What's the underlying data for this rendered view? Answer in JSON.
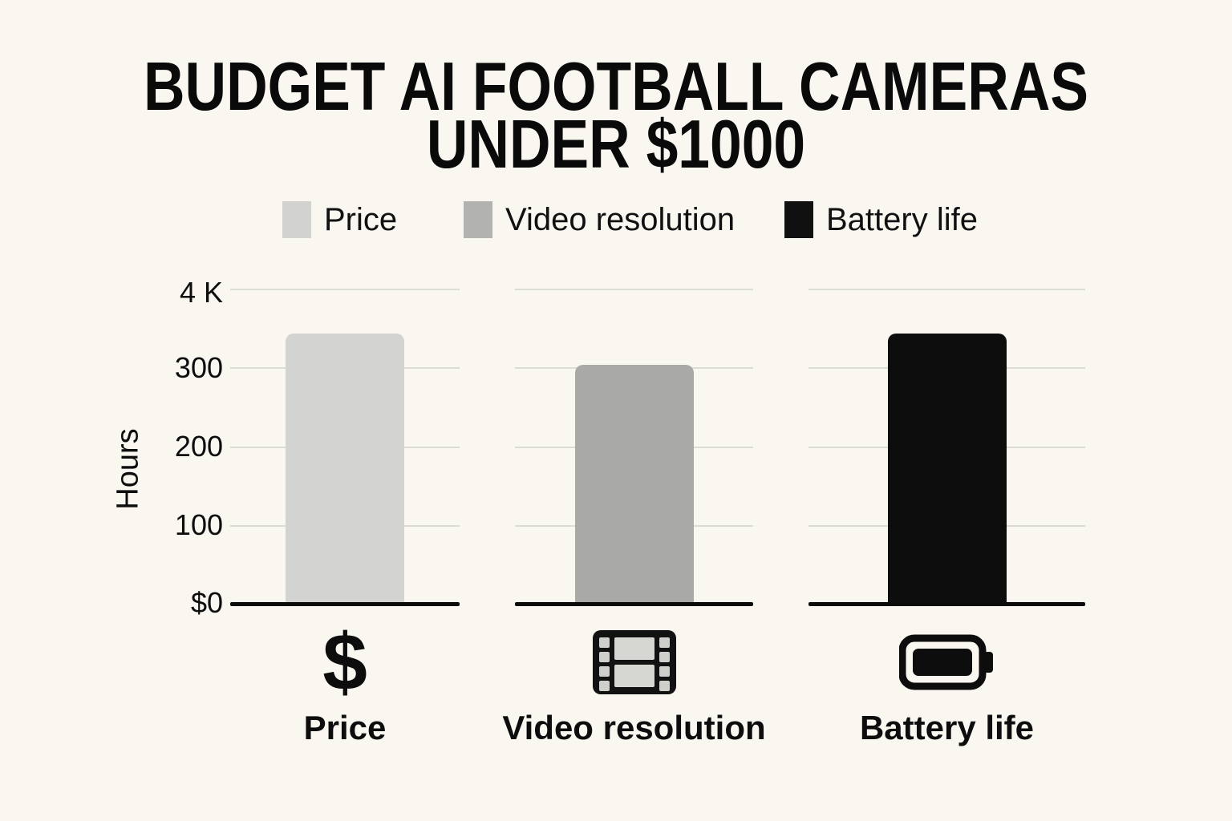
{
  "title": {
    "line1": "BUDGET AI FOOTBALL CAMERAS",
    "line2": "UNDER $1000"
  },
  "legend": {
    "items": [
      {
        "label": "Price",
        "color": "#d2d2d0"
      },
      {
        "label": "Video resolution",
        "color": "#b2b2b0"
      },
      {
        "label": "Battery life",
        "color": "#101010"
      }
    ]
  },
  "y_axis": {
    "title": "Hours",
    "ticks": {
      "top": "4 K",
      "t300": "300",
      "t200": "200",
      "t100": "100",
      "zero": "$0"
    }
  },
  "categories": [
    {
      "label": "Price",
      "icon": "dollar-icon",
      "glyph": "$"
    },
    {
      "label": "Video resolution",
      "icon": "film-icon"
    },
    {
      "label": "Battery life",
      "icon": "battery-icon"
    }
  ],
  "colors": {
    "background": "#faf7f1",
    "gridline": "#dcdcd7",
    "axis_baseline": "#0c0c0c",
    "text": "#0d0d0d"
  },
  "chart_data": {
    "type": "bar",
    "title": "BUDGET AI FOOTBALL CAMERAS UNDER $1000",
    "categories": [
      "Price",
      "Video resolution",
      "Battery life"
    ],
    "values": [
      340,
      300,
      340
    ],
    "bar_colors": [
      "#d3d3d1",
      "#a9aaa8",
      "#0d0d0d"
    ],
    "ylabel": "Hours",
    "xlabel": "",
    "ytick_labels": [
      "$0",
      "100",
      "200",
      "300",
      "4 K"
    ],
    "ylim": [
      0,
      400
    ],
    "grid": "horizontal",
    "legend_position": "top",
    "legend_entries": [
      "Price",
      "Video resolution",
      "Battery life"
    ],
    "layout": "three separate mini-panels, one bar each, shared y-axis at left"
  }
}
